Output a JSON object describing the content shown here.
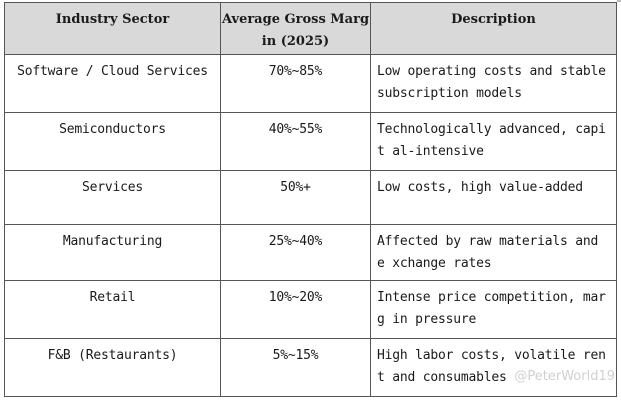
{
  "table": {
    "headers": [
      "Industry Sector",
      "Average Gross Marg\nin (2025)",
      "Description"
    ],
    "rows": [
      {
        "sector": "Software / Cloud Services",
        "margin": "70%~85%",
        "description": "Low operating costs and stable subscription models"
      },
      {
        "sector": "Semiconductors",
        "margin": "40%~55%",
        "description": "Technologically advanced, capit al-intensive"
      },
      {
        "sector": "Services",
        "margin": "50%+",
        "description": "Low costs, high value-added"
      },
      {
        "sector": "Manufacturing",
        "margin": "25%~40%",
        "description": "Affected by raw materials and e xchange rates"
      },
      {
        "sector": "Retail",
        "margin": "10%~20%",
        "description": "Intense price competition, marg in pressure"
      },
      {
        "sector": "F&B (Restaurants)",
        "margin": "5%~15%",
        "description": "High labor costs, volatile rent and consumables"
      }
    ]
  },
  "watermark": "@PeterWorld19"
}
